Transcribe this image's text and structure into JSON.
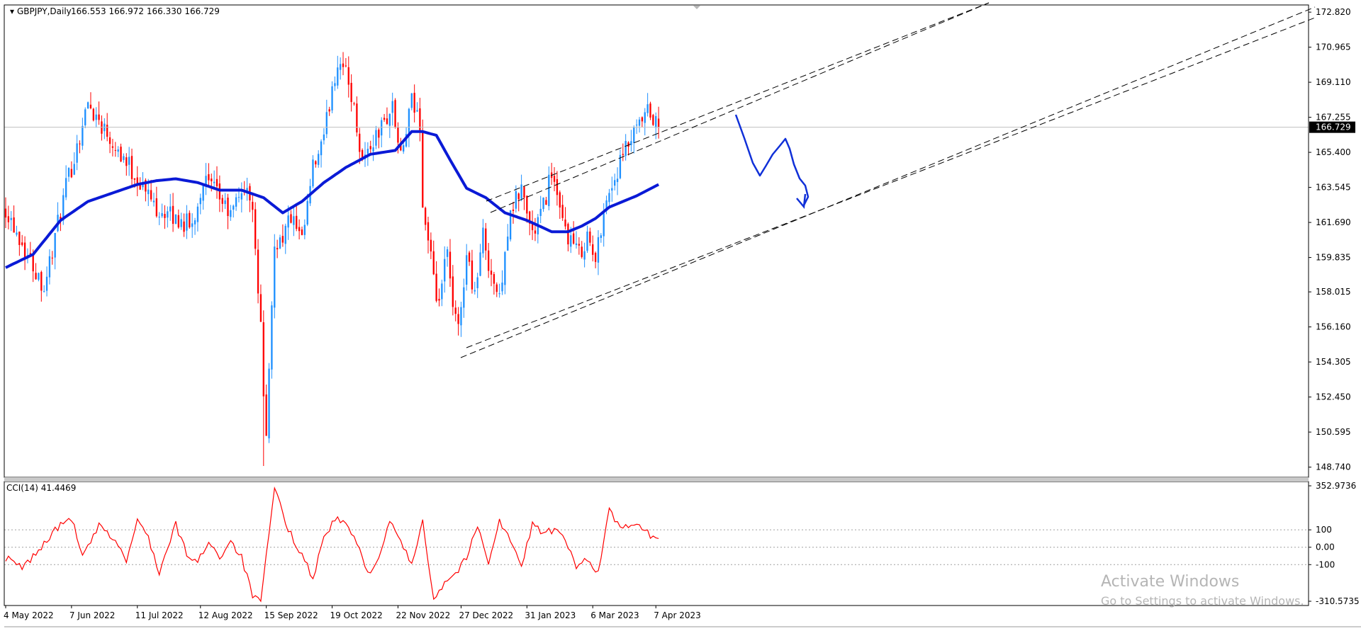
{
  "header": {
    "symbol": "GBPJPY,Daily",
    "ohlc": "166.553 166.972 166.330 166.729",
    "cci_label": "CCI(14) 41.4469"
  },
  "watermark": {
    "line1": "Activate Windows",
    "line2": "Go to Settings to activate Windows."
  },
  "colors": {
    "background": "#ffffff",
    "bull_candle": "#1e90ff",
    "bear_candle": "#ff0000",
    "moving_average": "#0a1ad6",
    "cci_line": "#ff0000",
    "channel_lines": "#000000",
    "annotation": "#1030d8",
    "price_tag_bg": "#000000"
  },
  "chart_data": [
    {
      "type": "candlestick",
      "symbol": "GBPJPY",
      "timeframe": "Daily",
      "last_price": 166.729,
      "price_tag": "166.729",
      "price_ticks": [
        "172.820",
        "170.965",
        "169.110",
        "167.255",
        "165.400",
        "163.545",
        "161.690",
        "159.835",
        "158.015",
        "156.160",
        "154.305",
        "152.450",
        "150.595",
        "148.740"
      ],
      "ylim": [
        148.2,
        173.2
      ],
      "date_ticks": [
        "4 May 2022",
        "7 Jun 2022",
        "11 Jul 2022",
        "12 Aug 2022",
        "15 Sep 2022",
        "19 Oct 2022",
        "22 Nov 2022",
        "27 Dec 2022",
        "31 Jan 2023",
        "6 Mar 2023",
        "7 Apr 2023"
      ],
      "n_bars": 263,
      "bar_tick_index": [
        0,
        24,
        48,
        71,
        95,
        119,
        143,
        166,
        190,
        214,
        237
      ],
      "close_keypoints": [
        [
          0,
          162.5
        ],
        [
          8,
          160.0
        ],
        [
          14,
          158.3
        ],
        [
          22,
          163.5
        ],
        [
          30,
          168.0
        ],
        [
          40,
          165.8
        ],
        [
          48,
          164.0
        ],
        [
          55,
          162.5
        ],
        [
          60,
          162.0
        ],
        [
          68,
          161.5
        ],
        [
          72,
          164.0
        ],
        [
          78,
          163.0
        ],
        [
          82,
          162.0
        ],
        [
          86,
          163.5
        ],
        [
          90,
          162.8
        ],
        [
          93,
          156.0
        ],
        [
          95,
          150.0
        ],
        [
          98,
          160.5
        ],
        [
          101,
          161.0
        ],
        [
          104,
          162.0
        ],
        [
          108,
          160.5
        ],
        [
          112,
          164.5
        ],
        [
          116,
          166.0
        ],
        [
          119,
          169.0
        ],
        [
          122,
          170.5
        ],
        [
          126,
          168.5
        ],
        [
          130,
          165.0
        ],
        [
          134,
          166.0
        ],
        [
          138,
          167.0
        ],
        [
          141,
          167.8
        ],
        [
          144,
          165.0
        ],
        [
          148,
          168.0
        ],
        [
          151,
          167.0
        ],
        [
          152,
          162.5
        ],
        [
          155,
          160.0
        ],
        [
          157,
          157.0
        ],
        [
          159,
          158.5
        ],
        [
          161,
          160.0
        ],
        [
          163,
          157.0
        ],
        [
          165,
          156.0
        ],
        [
          168,
          160.0
        ],
        [
          171,
          158.0
        ],
        [
          174,
          161.0
        ],
        [
          177,
          159.0
        ],
        [
          180,
          157.5
        ],
        [
          182,
          160.5
        ],
        [
          185,
          162.5
        ],
        [
          188,
          163.5
        ],
        [
          192,
          161.0
        ],
        [
          196,
          162.5
        ],
        [
          199,
          164.5
        ],
        [
          202,
          162.0
        ],
        [
          205,
          161.0
        ],
        [
          209,
          160.0
        ],
        [
          212,
          161.0
        ],
        [
          215,
          159.5
        ],
        [
          218,
          162.5
        ],
        [
          222,
          164.0
        ],
        [
          226,
          165.5
        ],
        [
          230,
          166.5
        ],
        [
          234,
          167.5
        ],
        [
          238,
          166.7
        ]
      ],
      "ma_keypoints": [
        [
          0,
          159.3
        ],
        [
          10,
          160.0
        ],
        [
          20,
          161.8
        ],
        [
          30,
          162.8
        ],
        [
          40,
          163.3
        ],
        [
          48,
          163.7
        ],
        [
          55,
          163.9
        ],
        [
          62,
          164.0
        ],
        [
          70,
          163.8
        ],
        [
          78,
          163.4
        ],
        [
          86,
          163.4
        ],
        [
          94,
          163.0
        ],
        [
          101,
          162.2
        ],
        [
          108,
          162.8
        ],
        [
          116,
          163.8
        ],
        [
          124,
          164.6
        ],
        [
          133,
          165.3
        ],
        [
          142,
          165.5
        ],
        [
          148,
          166.5
        ],
        [
          152,
          166.5
        ],
        [
          157,
          166.3
        ],
        [
          162,
          165.0
        ],
        [
          168,
          163.5
        ],
        [
          175,
          163.0
        ],
        [
          182,
          162.2
        ],
        [
          190,
          161.8
        ],
        [
          199,
          161.2
        ],
        [
          205,
          161.2
        ],
        [
          210,
          161.5
        ],
        [
          215,
          161.9
        ],
        [
          220,
          162.5
        ],
        [
          230,
          163.1
        ],
        [
          238,
          163.7
        ]
      ],
      "cci_keypoints": [
        [
          0,
          -60
        ],
        [
          6,
          -120
        ],
        [
          12,
          -20
        ],
        [
          18,
          100
        ],
        [
          24,
          170
        ],
        [
          28,
          -60
        ],
        [
          34,
          120
        ],
        [
          40,
          40
        ],
        [
          44,
          -80
        ],
        [
          48,
          150
        ],
        [
          52,
          60
        ],
        [
          56,
          -150
        ],
        [
          62,
          130
        ],
        [
          66,
          -40
        ],
        [
          70,
          -90
        ],
        [
          74,
          40
        ],
        [
          78,
          -60
        ],
        [
          82,
          40
        ],
        [
          86,
          -60
        ],
        [
          90,
          -280
        ],
        [
          93,
          -320
        ],
        [
          98,
          340
        ],
        [
          103,
          100
        ],
        [
          108,
          -40
        ],
        [
          112,
          -180
        ],
        [
          116,
          60
        ],
        [
          120,
          160
        ],
        [
          124,
          140
        ],
        [
          128,
          20
        ],
        [
          132,
          -150
        ],
        [
          136,
          -60
        ],
        [
          140,
          140
        ],
        [
          144,
          40
        ],
        [
          148,
          -110
        ],
        [
          152,
          160
        ],
        [
          156,
          -300
        ],
        [
          160,
          -200
        ],
        [
          164,
          -150
        ],
        [
          168,
          -60
        ],
        [
          172,
          120
        ],
        [
          176,
          -80
        ],
        [
          180,
          150
        ],
        [
          184,
          40
        ],
        [
          188,
          -120
        ],
        [
          192,
          140
        ],
        [
          196,
          80
        ],
        [
          200,
          100
        ],
        [
          204,
          40
        ],
        [
          208,
          -120
        ],
        [
          212,
          -60
        ],
        [
          216,
          -150
        ],
        [
          220,
          220
        ],
        [
          224,
          100
        ],
        [
          228,
          140
        ],
        [
          232,
          100
        ],
        [
          236,
          60
        ],
        [
          238,
          41
        ]
      ],
      "cci_ticks": [
        "352.9736",
        "100",
        "0.00",
        "-100",
        "-310.5735"
      ],
      "cci_ylim": [
        -310.5735,
        352.9736
      ],
      "cci_levels": [
        100,
        0,
        -100
      ]
    }
  ]
}
